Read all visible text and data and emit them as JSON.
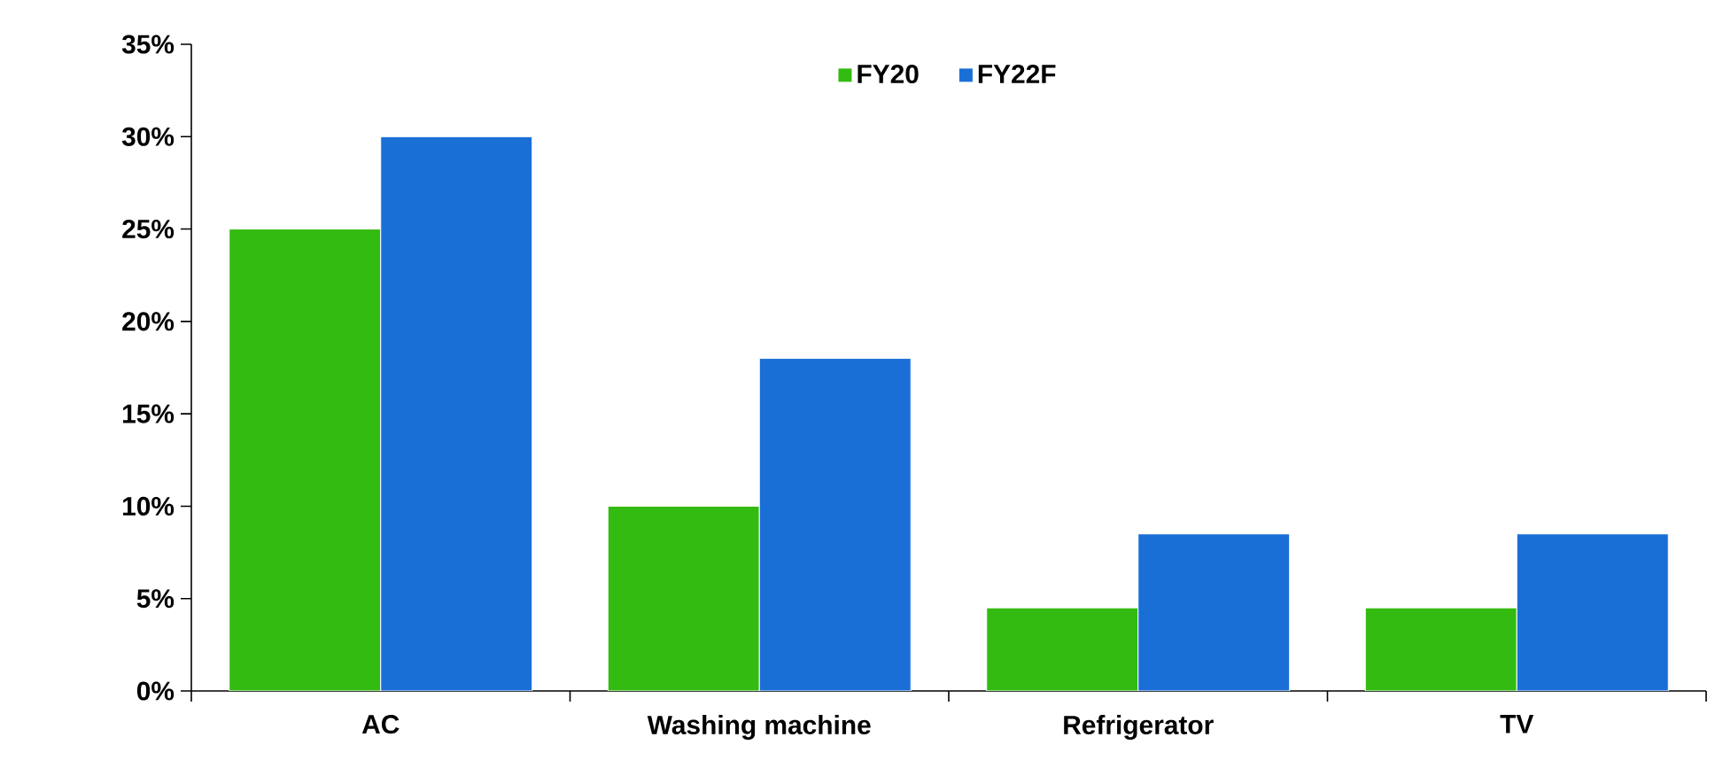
{
  "chart_data": {
    "type": "bar",
    "categories": [
      "AC",
      "Washing machine",
      "Refrigerator",
      "TV"
    ],
    "series": [
      {
        "name": "FY20",
        "color": "#33bb11",
        "values": [
          25,
          10,
          4.5,
          4.5
        ]
      },
      {
        "name": "FY22F",
        "color": "#1a6fd6",
        "values": [
          30,
          18,
          8.5,
          8.5
        ]
      }
    ],
    "ylim": [
      0,
      35
    ],
    "yticks": [
      {
        "value": 0,
        "label": "0%"
      },
      {
        "value": 5,
        "label": "5%"
      },
      {
        "value": 10,
        "label": "10%"
      },
      {
        "value": 15,
        "label": "15%"
      },
      {
        "value": 20,
        "label": "20%"
      },
      {
        "value": 25,
        "label": "25%"
      },
      {
        "value": 30,
        "label": "30%"
      },
      {
        "value": 35,
        "label": "35%"
      }
    ],
    "grid": false,
    "legend": "top"
  }
}
